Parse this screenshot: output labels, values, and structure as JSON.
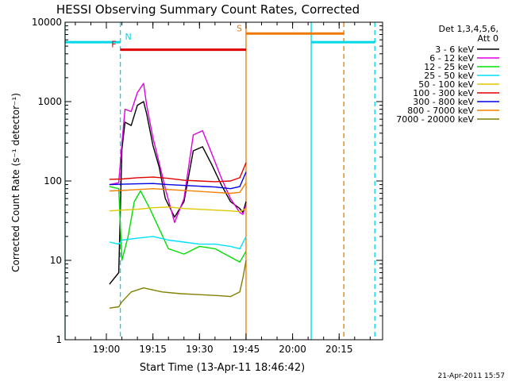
{
  "chart_data": {
    "type": "line",
    "title": "HESSI Observing Summary Count Rates, Corrected",
    "ylabel": "Corrected Count Rate (s⁻¹ detector⁻¹)",
    "xlabel": "Start Time (13-Apr-11 18:46:42)",
    "footer": "21-Apr-2011 15:57",
    "y_scale": "log",
    "ylim": [
      1,
      10000
    ],
    "xlim": [
      "18:46:42",
      "20:29:00"
    ],
    "y_ticks": [
      {
        "value": 1,
        "label": "1"
      },
      {
        "value": 10,
        "label": "10"
      },
      {
        "value": 100,
        "label": "100"
      },
      {
        "value": 1000,
        "label": "1000"
      },
      {
        "value": 10000,
        "label": "10000"
      }
    ],
    "x_ticks": [
      {
        "value": "19:00",
        "label": "19:00"
      },
      {
        "value": "19:15",
        "label": "19:15"
      },
      {
        "value": "19:30",
        "label": "19:30"
      },
      {
        "value": "19:45",
        "label": "19:45"
      },
      {
        "value": "20:00",
        "label": "20:00"
      },
      {
        "value": "20:15",
        "label": "20:15"
      }
    ],
    "legend_header": [
      "Det 1,3,4,5,6,",
      "Att 0"
    ],
    "legend_position": "right",
    "flags": [
      {
        "letter": "N",
        "label_at": "19:04:30",
        "color": "#00d8e8",
        "level": 5600,
        "segments": [
          [
            "18:46:42",
            "19:04:30"
          ],
          [
            "20:06:00",
            "20:26:30"
          ]
        ]
      },
      {
        "letter": "F",
        "label_at": "19:04:30",
        "color": "#e00000",
        "level": 4500,
        "segments": [
          [
            "19:04:30",
            "19:45:00"
          ]
        ]
      },
      {
        "letter": "S",
        "label_at": "19:45:00",
        "color": "#f07800",
        "level": 7200,
        "segments": [
          [
            "19:45:00",
            "20:16:30"
          ]
        ]
      }
    ],
    "vlines": [
      {
        "time": "18:46:42",
        "color": "#00d8e8",
        "style": "solid"
      },
      {
        "time": "19:04:30",
        "color": "#00d8e8",
        "style": "dashed"
      },
      {
        "time": "19:45:00",
        "color": "#f07800",
        "style": "solid"
      },
      {
        "time": "20:06:00",
        "color": "#00d8e8",
        "style": "solid"
      },
      {
        "time": "20:16:30",
        "color": "#f07800",
        "style": "dashed"
      },
      {
        "time": "20:26:30",
        "color": "#00d8e8",
        "style": "dashed"
      }
    ],
    "series": [
      {
        "name": "3 - 6 keV",
        "color": "#000000",
        "x": [
          "19:01",
          "19:04",
          "19:05",
          "19:06",
          "19:08",
          "19:10",
          "19:12",
          "19:13",
          "19:15",
          "19:17",
          "19:19",
          "19:22",
          "19:25",
          "19:28",
          "19:31",
          "19:34",
          "19:37",
          "19:40",
          "19:43",
          "19:44",
          "19:45"
        ],
        "y": [
          5,
          7,
          250,
          550,
          500,
          900,
          1000,
          700,
          280,
          150,
          60,
          35,
          55,
          240,
          270,
          160,
          90,
          55,
          45,
          40,
          55
        ]
      },
      {
        "name": "6 - 12 keV",
        "color": "#e000e0",
        "x": [
          "19:01",
          "19:04",
          "19:05",
          "19:06",
          "19:08",
          "19:10",
          "19:12",
          "19:13",
          "19:15",
          "19:17",
          "19:19",
          "19:22",
          "19:25",
          "19:28",
          "19:31",
          "19:34",
          "19:37",
          "19:40",
          "19:43",
          "19:44",
          "19:45"
        ],
        "y": [
          90,
          95,
          300,
          800,
          750,
          1300,
          1700,
          900,
          350,
          170,
          80,
          30,
          60,
          380,
          430,
          220,
          110,
          60,
          40,
          38,
          50
        ]
      },
      {
        "name": "12 - 25 keV",
        "color": "#00e000",
        "x": [
          "19:01",
          "19:04",
          "19:05",
          "19:07",
          "19:09",
          "19:11",
          "19:14",
          "19:17",
          "19:20",
          "19:25",
          "19:30",
          "19:35",
          "19:40",
          "19:43",
          "19:45"
        ],
        "y": [
          85,
          80,
          10,
          20,
          55,
          75,
          45,
          25,
          14,
          12,
          15,
          14,
          11,
          9.5,
          13
        ]
      },
      {
        "name": "25 - 50 keV",
        "color": "#00e0ff",
        "x": [
          "19:01",
          "19:04",
          "19:05",
          "19:10",
          "19:15",
          "19:20",
          "19:25",
          "19:30",
          "19:35",
          "19:40",
          "19:43",
          "19:45"
        ],
        "y": [
          17,
          16,
          18,
          19,
          20,
          18,
          17,
          16,
          16,
          15,
          14,
          20
        ]
      },
      {
        "name": "50 - 100 keV",
        "color": "#e0c800",
        "x": [
          "19:01",
          "19:05",
          "19:10",
          "19:15",
          "19:20",
          "19:25",
          "19:30",
          "19:35",
          "19:40",
          "19:43",
          "19:45"
        ],
        "y": [
          42,
          43,
          44,
          46,
          47,
          45,
          44,
          43,
          42,
          41,
          45
        ]
      },
      {
        "name": "100 - 300 keV",
        "color": "#e00000",
        "x": [
          "19:01",
          "19:05",
          "19:10",
          "19:15",
          "19:20",
          "19:25",
          "19:30",
          "19:35",
          "19:40",
          "19:43",
          "19:45"
        ],
        "y": [
          105,
          106,
          110,
          112,
          108,
          102,
          100,
          98,
          100,
          110,
          170
        ]
      },
      {
        "name": "300 - 800 keV",
        "color": "#0000e0",
        "x": [
          "19:01",
          "19:05",
          "19:10",
          "19:15",
          "19:20",
          "19:25",
          "19:30",
          "19:35",
          "19:40",
          "19:43",
          "19:45"
        ],
        "y": [
          90,
          91,
          92,
          93,
          90,
          88,
          86,
          84,
          80,
          85,
          130
        ]
      },
      {
        "name": "800 - 7000 keV",
        "color": "#f08000",
        "x": [
          "19:01",
          "19:05",
          "19:10",
          "19:15",
          "19:20",
          "19:25",
          "19:30",
          "19:35",
          "19:40",
          "19:43",
          "19:45"
        ],
        "y": [
          75,
          76,
          78,
          80,
          78,
          76,
          74,
          72,
          70,
          72,
          95
        ]
      },
      {
        "name": "7000 - 20000 keV",
        "color": "#808000",
        "x": [
          "19:01",
          "19:04",
          "19:05",
          "19:08",
          "19:12",
          "19:18",
          "19:24",
          "19:30",
          "19:36",
          "19:40",
          "19:43",
          "19:44",
          "19:45"
        ],
        "y": [
          2.5,
          2.6,
          3,
          4,
          4.5,
          4,
          3.8,
          3.7,
          3.6,
          3.5,
          4,
          6,
          10
        ]
      }
    ]
  }
}
